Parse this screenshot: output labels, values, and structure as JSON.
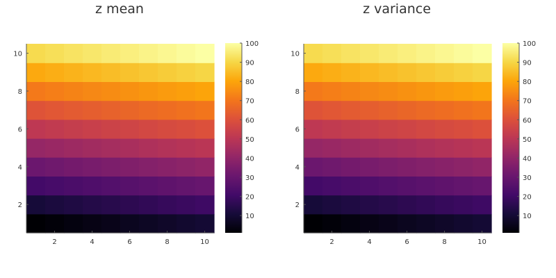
{
  "chart_data": [
    {
      "type": "heatmap",
      "title": "z mean",
      "x": [
        1,
        2,
        3,
        4,
        5,
        6,
        7,
        8,
        9,
        10
      ],
      "y": [
        1,
        2,
        3,
        4,
        5,
        6,
        7,
        8,
        9,
        10
      ],
      "z_formula": "z = 10*y + x - 10",
      "xticks": [
        2,
        4,
        6,
        8,
        10
      ],
      "yticks": [
        2,
        4,
        6,
        8,
        10
      ],
      "colorbar": {
        "colormap": "inferno",
        "range": [
          1,
          100
        ],
        "ticks": [
          10,
          20,
          30,
          40,
          50,
          60,
          70,
          80,
          90,
          100
        ]
      },
      "grid": false
    },
    {
      "type": "heatmap",
      "title": "z variance",
      "x": [
        1,
        2,
        3,
        4,
        5,
        6,
        7,
        8,
        9,
        10
      ],
      "y": [
        1,
        2,
        3,
        4,
        5,
        6,
        7,
        8,
        9,
        10
      ],
      "z_formula": "z = 10*y + x - 10",
      "xticks": [
        2,
        4,
        6,
        8,
        10
      ],
      "yticks": [
        2,
        4,
        6,
        8,
        10
      ],
      "colorbar": {
        "colormap": "inferno",
        "range": [
          1,
          100
        ],
        "ticks": [
          10,
          20,
          30,
          40,
          50,
          60,
          70,
          80,
          90,
          100
        ]
      },
      "grid": false
    }
  ]
}
